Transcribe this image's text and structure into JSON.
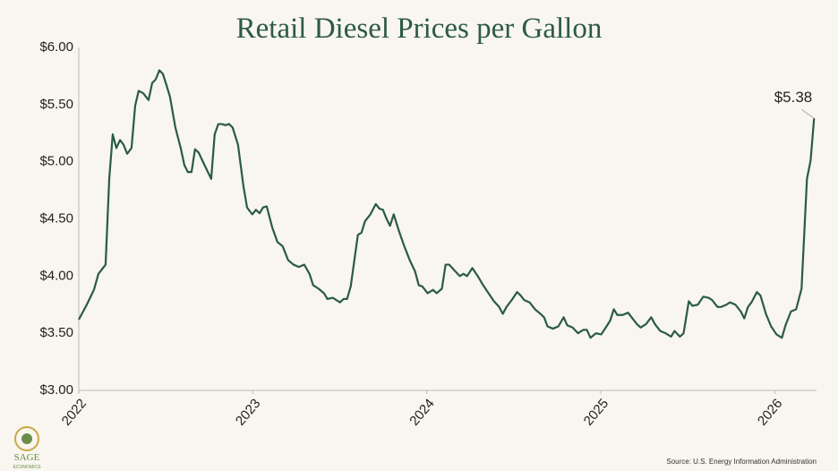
{
  "chart_data": {
    "type": "line",
    "title": "Retail Diesel Prices per Gallon",
    "source": "Source: U.S. Energy Information Administration",
    "logo": {
      "name": "SAGE",
      "subtitle": "ECONOMICS"
    },
    "x": [
      2022.0,
      2022.046,
      2022.087,
      2022.113,
      2022.154,
      2022.175,
      2022.195,
      2022.216,
      2022.237,
      2022.257,
      2022.278,
      2022.303,
      2022.324,
      2022.344,
      2022.37,
      2022.401,
      2022.422,
      2022.442,
      2022.463,
      2022.483,
      2022.504,
      2022.524,
      2022.555,
      2022.586,
      2022.607,
      2022.627,
      2022.648,
      2022.668,
      2022.689,
      2022.72,
      2022.761,
      2022.781,
      2022.802,
      2022.823,
      2022.843,
      2022.864,
      2022.884,
      2022.915,
      2022.946,
      2022.967,
      2022.997,
      2023.018,
      2023.039,
      2023.059,
      2023.08,
      2023.111,
      2023.141,
      2023.172,
      2023.203,
      2023.234,
      2023.265,
      2023.296,
      2023.326,
      2023.347,
      2023.378,
      2023.409,
      2023.429,
      2023.46,
      2023.481,
      2023.501,
      2023.522,
      2023.542,
      2023.563,
      2023.584,
      2023.604,
      2023.625,
      2023.645,
      2023.676,
      2023.707,
      2023.728,
      2023.748,
      2023.769,
      2023.789,
      2023.81,
      2023.841,
      2023.871,
      2023.902,
      2023.933,
      2023.954,
      2023.974,
      2024.005,
      2024.036,
      2024.057,
      2024.087,
      2024.108,
      2024.129,
      2024.159,
      2024.19,
      2024.211,
      2024.231,
      2024.262,
      2024.293,
      2024.324,
      2024.355,
      2024.386,
      2024.416,
      2024.437,
      2024.458,
      2024.488,
      2024.519,
      2024.54,
      2024.56,
      2024.591,
      2024.622,
      2024.653,
      2024.674,
      2024.694,
      2024.725,
      2024.756,
      2024.787,
      2024.807,
      2024.838,
      2024.869,
      2024.9,
      2024.92,
      2024.941,
      2024.972,
      2025.003,
      2025.033,
      2025.054,
      2025.075,
      2025.095,
      2025.126,
      2025.157,
      2025.177,
      2025.208,
      2025.229,
      2025.26,
      2025.29,
      2025.311,
      2025.342,
      2025.373,
      2025.404,
      2025.424,
      2025.455,
      2025.476,
      2025.506,
      2025.527,
      2025.558,
      2025.589,
      2025.62,
      2025.64,
      2025.671,
      2025.692,
      2025.722,
      2025.743,
      2025.774,
      2025.805,
      2025.825,
      2025.846,
      2025.866,
      2025.897,
      2025.918,
      2025.949,
      2025.979,
      2026.01,
      2026.041,
      2026.062,
      2026.093,
      2026.123,
      2026.154,
      2026.185,
      2026.206,
      2026.226
    ],
    "series": [
      {
        "name": "Retail diesel price",
        "color": "#2b5b45",
        "values": [
          3.62,
          3.75,
          3.88,
          4.02,
          4.1,
          4.85,
          5.24,
          5.12,
          5.19,
          5.15,
          5.07,
          5.12,
          5.49,
          5.62,
          5.6,
          5.54,
          5.69,
          5.72,
          5.8,
          5.77,
          5.67,
          5.57,
          5.3,
          5.12,
          4.97,
          4.91,
          4.91,
          5.11,
          5.08,
          4.98,
          4.85,
          5.24,
          5.33,
          5.33,
          5.32,
          5.33,
          5.3,
          5.15,
          4.79,
          4.6,
          4.54,
          4.58,
          4.55,
          4.6,
          4.61,
          4.43,
          4.3,
          4.26,
          4.14,
          4.1,
          4.08,
          4.1,
          4.02,
          3.92,
          3.89,
          3.85,
          3.8,
          3.81,
          3.79,
          3.77,
          3.8,
          3.8,
          3.91,
          4.14,
          4.36,
          4.38,
          4.48,
          4.54,
          4.63,
          4.59,
          4.58,
          4.5,
          4.44,
          4.54,
          4.39,
          4.26,
          4.14,
          4.04,
          3.92,
          3.91,
          3.85,
          3.88,
          3.85,
          3.89,
          4.1,
          4.1,
          4.05,
          4.0,
          4.02,
          4.0,
          4.07,
          4.0,
          3.92,
          3.85,
          3.78,
          3.73,
          3.67,
          3.73,
          3.79,
          3.86,
          3.83,
          3.79,
          3.77,
          3.71,
          3.67,
          3.64,
          3.56,
          3.54,
          3.56,
          3.64,
          3.57,
          3.55,
          3.5,
          3.53,
          3.53,
          3.46,
          3.5,
          3.49,
          3.56,
          3.61,
          3.71,
          3.66,
          3.66,
          3.68,
          3.64,
          3.58,
          3.55,
          3.58,
          3.64,
          3.58,
          3.52,
          3.5,
          3.47,
          3.52,
          3.47,
          3.5,
          3.78,
          3.74,
          3.75,
          3.82,
          3.81,
          3.79,
          3.73,
          3.73,
          3.75,
          3.77,
          3.75,
          3.69,
          3.63,
          3.73,
          3.77,
          3.86,
          3.83,
          3.67,
          3.56,
          3.49,
          3.46,
          3.57,
          3.69,
          3.71,
          3.89,
          4.85,
          5.01,
          5.38
        ]
      }
    ],
    "annotations": [
      {
        "text": "$5.38",
        "x": 2026.226,
        "y": 5.38
      }
    ],
    "xlim": [
      2022,
      2026.24
    ],
    "xticks": [
      2022,
      2023,
      2024,
      2025,
      2026
    ],
    "ylim": [
      3,
      6
    ],
    "yticks": [
      {
        "value": 3,
        "label": "$3.00"
      },
      {
        "value": 3.5,
        "label": "$3.50"
      },
      {
        "value": 4,
        "label": "$4.00"
      },
      {
        "value": 4.5,
        "label": "$4.50"
      },
      {
        "value": 5,
        "label": "$5.00"
      },
      {
        "value": 5.5,
        "label": "$5.50"
      },
      {
        "value": 6,
        "label": "$6.00"
      }
    ],
    "grid": false
  }
}
